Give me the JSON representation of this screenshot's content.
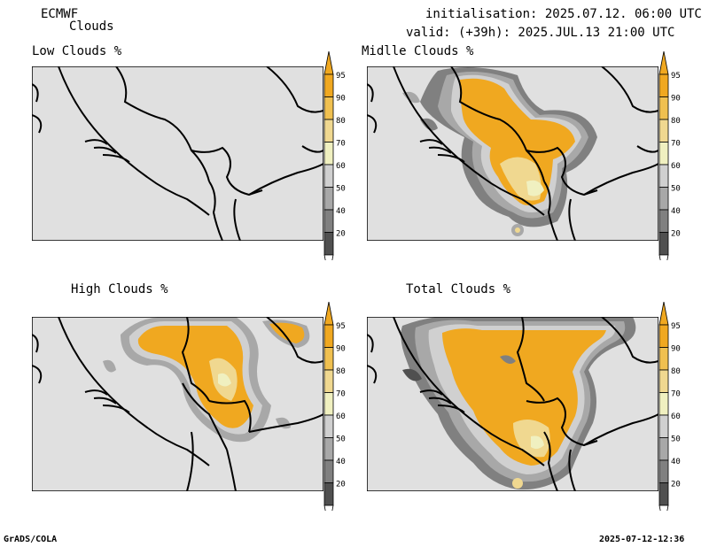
{
  "header": {
    "model": "ECMWF",
    "product": "Clouds",
    "init": "initialisation: 2025.07.12. 06:00 UTC",
    "valid": "valid: (+39h): 2025.JUL.13 21:00 UTC"
  },
  "panels": [
    {
      "title": "Low Clouds %"
    },
    {
      "title": "Midlle Clouds %"
    },
    {
      "title": "High Clouds %"
    },
    {
      "title": "Total Clouds %"
    }
  ],
  "colorbar": {
    "ticks": [
      "95",
      "90",
      "80",
      "70",
      "60",
      "50",
      "40",
      "20"
    ],
    "colors": {
      "c95": "#f0a820",
      "c90": "#f0c050",
      "c80": "#f0d890",
      "c70": "#f0f0c0",
      "c60": "#d0d0d0",
      "c50": "#a8a8a8",
      "c40": "#808080",
      "c20": "#505050"
    }
  },
  "colors": {
    "background": "#e0e0e0",
    "border": "#000000",
    "orange": "#f0a820",
    "light_orange": "#f0c050",
    "pale": "#f0d890",
    "cream": "#f0f0c0",
    "gray_mid": "#a8a8a8",
    "gray_dark": "#808080"
  },
  "footer": {
    "left": "GrADS/COLA",
    "right": "2025-07-12-12:36"
  }
}
